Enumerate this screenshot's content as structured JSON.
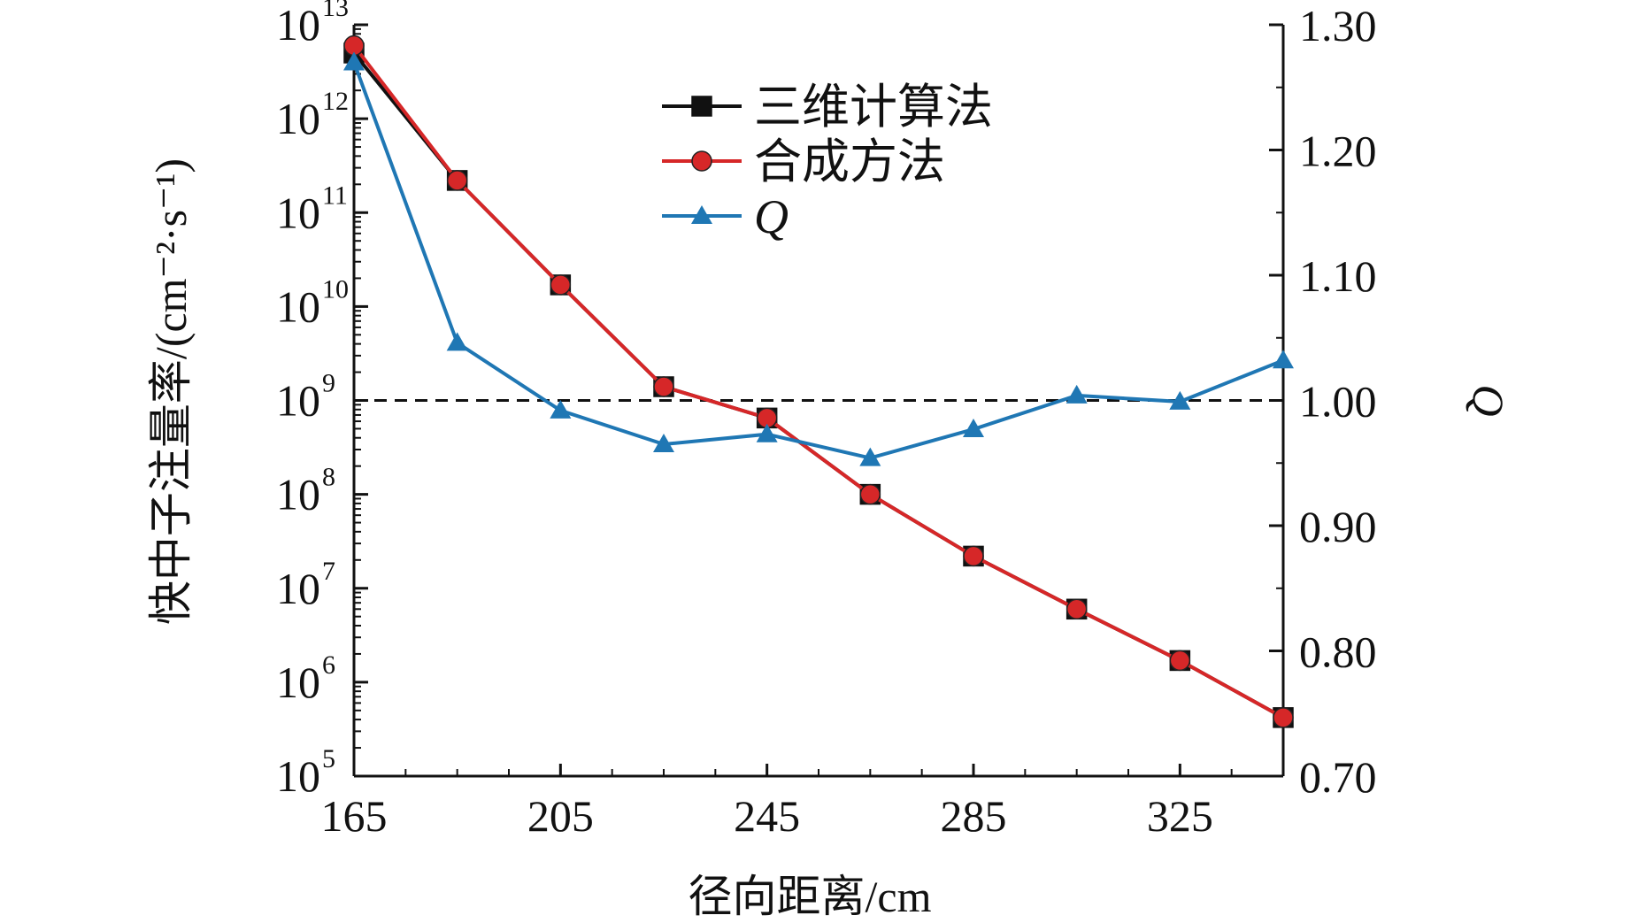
{
  "chart_data": {
    "type": "line",
    "xlabel": "径向距离/cm",
    "ylabel_left": "快中子注量率/(cm⁻²·s⁻¹)",
    "ylabel_right": "Q",
    "x_ticks": [
      "165",
      "205",
      "245",
      "285",
      "325"
    ],
    "y_left_ticks": [
      {
        "base": "10",
        "exp": "5"
      },
      {
        "base": "10",
        "exp": "6"
      },
      {
        "base": "10",
        "exp": "7"
      },
      {
        "base": "10",
        "exp": "8"
      },
      {
        "base": "10",
        "exp": "9"
      },
      {
        "base": "10",
        "exp": "10"
      },
      {
        "base": "10",
        "exp": "11"
      },
      {
        "base": "10",
        "exp": "12"
      },
      {
        "base": "10",
        "exp": "13"
      }
    ],
    "y_right_ticks": [
      "0.70",
      "0.80",
      "0.90",
      "1.00",
      "1.10",
      "1.20",
      "1.30"
    ],
    "x_range": [
      165,
      345
    ],
    "y_left_range_log10": [
      5,
      13
    ],
    "y_right_range": [
      0.7,
      1.3
    ],
    "reference_line": {
      "axis": "right",
      "value": 1.0,
      "style": "dashed"
    },
    "legend": {
      "placement": "top-center"
    },
    "series": [
      {
        "name": "三维计算法",
        "axis": "left",
        "marker": "square",
        "color": "#111111",
        "x": [
          165,
          185,
          205,
          225,
          245,
          265,
          285,
          305,
          325,
          345
        ],
        "y": [
          5000000000000.0,
          220000000000.0,
          17000000000.0,
          1400000000.0,
          650000000.0,
          100000000.0,
          22000000.0,
          6000000.0,
          1700000.0,
          420000.0
        ]
      },
      {
        "name": "合成方法",
        "axis": "left",
        "marker": "circle",
        "color": "#d62728",
        "x": [
          165,
          185,
          205,
          225,
          245,
          265,
          285,
          305,
          325,
          345
        ],
        "y": [
          6000000000000.0,
          220000000000.0,
          17000000000.0,
          1400000000.0,
          650000000.0,
          100000000.0,
          22000000.0,
          6000000.0,
          1700000.0,
          420000.0
        ]
      },
      {
        "name": "Q",
        "axis": "right",
        "marker": "triangle",
        "color": "#1f77b4",
        "x": [
          165,
          185,
          205,
          225,
          245,
          265,
          285,
          305,
          325,
          345
        ],
        "y": [
          1.27,
          1.046,
          0.992,
          0.965,
          0.973,
          0.954,
          0.977,
          1.004,
          0.999,
          1.032
        ]
      }
    ]
  }
}
